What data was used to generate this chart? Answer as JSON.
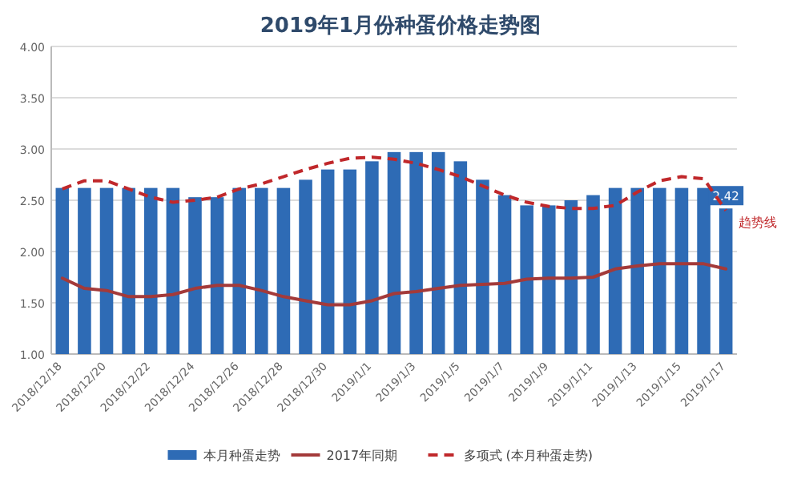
{
  "chart_data": {
    "type": "bar",
    "title": "2019年1月份种蛋价格走势图",
    "categories": [
      "2018/12/18",
      null,
      "2018/12/20",
      null,
      "2018/12/22",
      null,
      "2018/12/24",
      null,
      "2018/12/26",
      null,
      "2018/12/28",
      null,
      "2018/12/30",
      null,
      "2019/1/1",
      null,
      "2019/1/3",
      null,
      "2019/1/5",
      null,
      "2019/1/7",
      null,
      "2019/1/9",
      null,
      "2019/1/11",
      null,
      "2019/1/13",
      null,
      "2019/1/15",
      null,
      "2019/1/17"
    ],
    "series": [
      {
        "name": "本月种蛋走势",
        "color": "#2e6bb5",
        "values": [
          2.62,
          2.62,
          2.62,
          2.62,
          2.62,
          2.62,
          2.53,
          2.53,
          2.62,
          2.62,
          2.62,
          2.7,
          2.8,
          2.8,
          2.88,
          2.97,
          2.97,
          2.97,
          2.88,
          2.7,
          2.55,
          2.45,
          2.45,
          2.5,
          2.55,
          2.62,
          2.62,
          2.62,
          2.62,
          2.62,
          2.42
        ],
        "value_labels": [
          null,
          null,
          null,
          null,
          null,
          null,
          null,
          null,
          null,
          null,
          null,
          null,
          null,
          null,
          null,
          null,
          null,
          null,
          null,
          null,
          null,
          null,
          null,
          null,
          null,
          null,
          null,
          null,
          null,
          null,
          "2.42"
        ]
      },
      {
        "name": "2017年同期",
        "type": "line",
        "color": "#a33a3a",
        "line_style": "solid",
        "values": [
          1.74,
          1.64,
          1.62,
          1.56,
          1.56,
          1.58,
          1.64,
          1.67,
          1.67,
          1.62,
          1.56,
          1.52,
          1.48,
          1.48,
          1.52,
          1.59,
          1.61,
          1.64,
          1.67,
          1.68,
          1.69,
          1.73,
          1.74,
          1.74,
          1.75,
          1.83,
          1.86,
          1.88,
          1.88,
          1.88,
          1.83
        ]
      },
      {
        "name": "多项式 (本月种蛋走势)",
        "type": "line",
        "color": "#c0282b",
        "line_style": "dashed",
        "values": [
          2.61,
          2.69,
          2.69,
          2.61,
          2.53,
          2.48,
          2.5,
          2.53,
          2.61,
          2.66,
          2.73,
          2.8,
          2.86,
          2.91,
          2.92,
          2.9,
          2.86,
          2.8,
          2.73,
          2.64,
          2.55,
          2.48,
          2.44,
          2.42,
          2.42,
          2.45,
          2.58,
          2.69,
          2.73,
          2.71,
          2.4
        ]
      }
    ],
    "annotations": [
      {
        "text": "趋势线",
        "x": "2019/1/17",
        "y": 2.4
      }
    ],
    "ylim": [
      1,
      4
    ],
    "yticks": [
      {
        "value": 1,
        "label": "1.00"
      },
      {
        "value": 1.5,
        "label": "1.50"
      },
      {
        "value": 2,
        "label": "2.00"
      },
      {
        "value": 2.5,
        "label": "2.50"
      },
      {
        "value": 3,
        "label": "3.00"
      },
      {
        "value": 3.5,
        "label": "3.50"
      },
      {
        "value": 4,
        "label": "4.00"
      }
    ],
    "grid": "y",
    "legend": "bottom"
  }
}
